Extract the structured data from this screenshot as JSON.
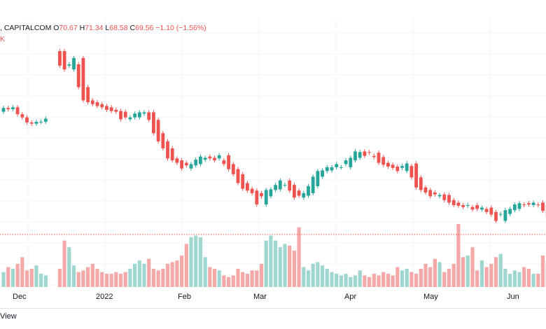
{
  "legend": {
    "source": ", CAPITALCOM",
    "o_label": "O",
    "o_value": "70.67",
    "h_label": "H",
    "h_value": "71.34",
    "l_label": "L",
    "l_value": "68.58",
    "c_label": "C",
    "c_value": "69.56",
    "change": "−1.10 (−1.56%)",
    "volume_fragment": "K"
  },
  "footer": {
    "text": "View"
  },
  "colors": {
    "up": "#26a69a",
    "down": "#ef5350",
    "up_vol": "#9fd6cf",
    "down_vol": "#f4a9a8",
    "grid": "#f0f3fa",
    "axis_text": "#131722"
  },
  "chart_data": {
    "type": "candlestick",
    "x_ticks": [
      "Dec",
      "2022",
      "Feb",
      "Mar",
      "Apr",
      "May",
      "Jun"
    ],
    "ohlc_open": [
      76.9,
      77.5,
      77.3,
      77.6,
      76.5,
      76,
      75.2,
      75,
      75.3,
      75.3,
      null,
      null,
      86.5,
      86.5,
      84.2,
      83.6,
      84.4,
      85.4,
      80.8,
      78.7,
      78.4,
      78.1,
      77.8,
      77.6,
      77.2,
      77,
      76.9,
      75.7,
      76,
      76,
      76.6,
      76.8,
      76.8,
      75.6,
      73.5,
      72.2,
      71.1,
      69.5,
      69.2,
      68.8,
      67.9,
      68.4,
      68.6,
      69.3,
      69.8,
      69.6,
      69.5,
      69.2,
      70,
      68.6,
      67.8,
      67,
      65.6,
      64.7,
      64.4,
      64,
      62.2,
      63.5,
      64.5,
      64.6,
      65.3,
      66,
      65.3,
      64.4,
      63.3,
      63.6,
      64,
      65.1,
      66.6,
      67.5,
      67.6,
      68.1,
      68.1,
      68.6,
      68.1,
      69.2,
      69.6,
      70.6,
      70.5,
      69.9,
      70.4,
      69.7,
      68.8,
      68.5,
      68.2,
      68,
      67.5,
      68.3,
      68.7,
      66.5,
      64.9,
      64.5,
      64.1,
      63.5,
      63.8,
      63.7,
      62.9,
      62.5,
      62.1,
      62,
      61.8,
      62.1,
      61.4,
      61.5,
      61.7,
      61,
      60.6,
      59.6,
      60.7,
      61.3,
      61.5,
      62.2,
      62.4,
      62.1,
      62.2,
      62.5,
      62.1,
      61.2,
      60.2
    ],
    "ohlc_close": [
      77.5,
      77.3,
      77.6,
      76.5,
      76,
      75.2,
      75,
      75.3,
      75.3,
      75.8,
      null,
      null,
      84.2,
      83.6,
      84.4,
      85.4,
      80.8,
      78.7,
      78.4,
      78.1,
      77.8,
      77.6,
      77.2,
      77,
      76.9,
      75.7,
      76,
      76,
      76.6,
      76.8,
      76.8,
      75.6,
      73.5,
      72.2,
      71.1,
      69.5,
      69.2,
      68.8,
      67.9,
      68.4,
      68.6,
      69.3,
      69.8,
      69.6,
      69.5,
      69.2,
      70,
      68.6,
      67.8,
      67,
      65.6,
      64.7,
      64.4,
      64,
      62.2,
      63.5,
      64.5,
      64.6,
      65.3,
      66,
      65.3,
      64.4,
      63.3,
      63.6,
      64,
      65.1,
      66.6,
      67.5,
      67.6,
      68.1,
      68.1,
      68.6,
      68.1,
      69.2,
      69.6,
      70.6,
      70.5,
      69.9,
      70.4,
      69.7,
      68.8,
      68.5,
      68.2,
      68,
      67.5,
      68.3,
      68.7,
      66.5,
      64.9,
      64.5,
      64.1,
      63.5,
      63.8,
      63.7,
      62.9,
      62.5,
      62.1,
      62,
      61.8,
      62.1,
      61.4,
      61.5,
      61.7,
      61,
      60.6,
      59.6,
      60.7,
      61.3,
      61.5,
      62.2,
      62.4,
      62.1,
      62.2,
      62.5,
      62.1,
      61.2,
      60.2,
      59.5
    ],
    "volume_relative": [
      0.45,
      0.6,
      0.55,
      0.7,
      0.9,
      0.5,
      0.55,
      0.65,
      0.4,
      0.35,
      0.3,
      0.4,
      0.55,
      1.4,
      1.2,
      0.65,
      0.45,
      0.5,
      0.6,
      0.7,
      0.55,
      0.45,
      0.4,
      0.4,
      0.45,
      0.4,
      0.45,
      0.55,
      0.7,
      0.8,
      0.7,
      0.85,
      0.55,
      0.5,
      0.55,
      0.7,
      0.75,
      0.8,
      0.95,
      1.3,
      1.5,
      1.55,
      1.5,
      0.9,
      0.6,
      0.55,
      0.5,
      0.35,
      0.3,
      0.35,
      0.55,
      0.45,
      0.4,
      0.5,
      0.5,
      0.7,
      1.4,
      1.55,
      1.4,
      1.2,
      1.3,
      1.25,
      1.1,
      1.8,
      0.6,
      0.5,
      0.7,
      0.75,
      0.65,
      0.55,
      0.45,
      0.4,
      0.35,
      0.4,
      0.3,
      0.35,
      0.5,
      0.35,
      0.3,
      0.4,
      0.35,
      0.45,
      0.4,
      0.35,
      0.6,
      0.5,
      0.55,
      0.45,
      0.4,
      0.55,
      0.7,
      0.6,
      0.85,
      0.75,
      0.45,
      0.55,
      0.7,
      1.9,
      0.9,
      0.95,
      1.2,
      0.5,
      0.8,
      0.6,
      0.7,
      0.9,
      1.0,
      0.55,
      0.4,
      0.5,
      0.45,
      0.6,
      0.55,
      0.4,
      0.4,
      0.95,
      0.8,
      1.0,
      1.1
    ]
  }
}
